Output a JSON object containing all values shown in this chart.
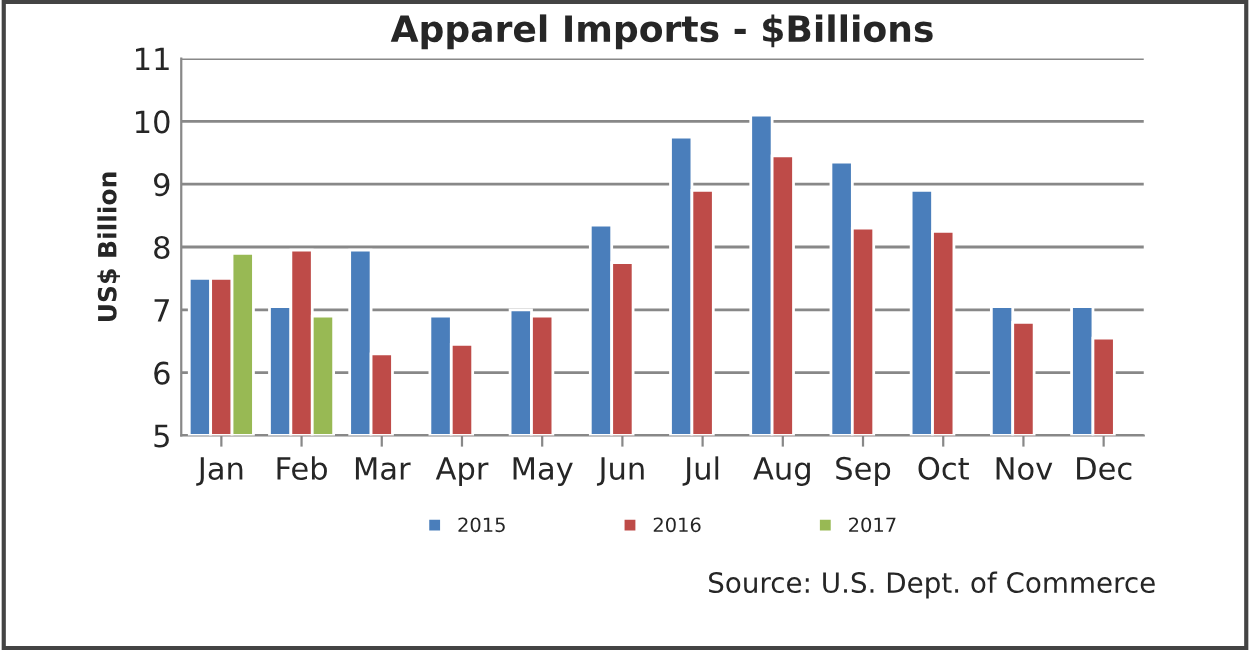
{
  "chart_data": {
    "type": "bar",
    "title": "Apparel Imports - $Billions",
    "ylabel": "US$ Billion",
    "categories": [
      "Jan",
      "Feb",
      "Mar",
      "Apr",
      "May",
      "Jun",
      "Jul",
      "Aug",
      "Sep",
      "Oct",
      "Nov",
      "Dec"
    ],
    "series": [
      {
        "name": "2015",
        "color": "#4a7ebb",
        "values": [
          7.5,
          7.05,
          7.95,
          6.9,
          7.0,
          8.35,
          9.75,
          10.1,
          9.35,
          8.9,
          7.05,
          7.05
        ]
      },
      {
        "name": "2016",
        "color": "#be4b48",
        "values": [
          7.5,
          7.95,
          6.3,
          6.45,
          6.9,
          7.75,
          8.9,
          9.45,
          8.3,
          8.25,
          6.8,
          6.55
        ]
      },
      {
        "name": "2017",
        "color": "#98b954",
        "values": [
          7.9,
          6.9,
          null,
          null,
          null,
          null,
          null,
          null,
          null,
          null,
          null,
          null
        ]
      }
    ],
    "ylim": [
      5,
      11
    ],
    "yticks": [
      5,
      6,
      7,
      8,
      9,
      10,
      11
    ],
    "grid": "y",
    "legend": "bottom",
    "annotations": [
      "Source: U.S. Dept. of Commerce"
    ]
  }
}
